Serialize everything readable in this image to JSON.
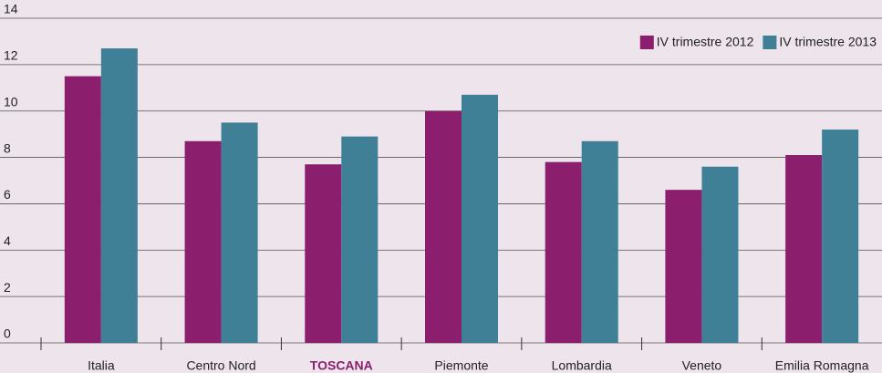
{
  "chart_data": {
    "type": "bar",
    "categories": [
      "Italia",
      "Centro Nord",
      "TOSCANA",
      "Piemonte",
      "Lombardia",
      "Veneto",
      "Emilia Romagna"
    ],
    "series": [
      {
        "name": "IV trimestre 2012",
        "color": "#8b1f6e",
        "values": [
          11.5,
          8.7,
          7.7,
          10.0,
          7.8,
          6.6,
          8.1
        ]
      },
      {
        "name": "IV trimestre 2013",
        "color": "#3f8097",
        "values": [
          12.7,
          9.5,
          8.9,
          10.7,
          8.7,
          7.6,
          9.2
        ]
      }
    ],
    "ylim": [
      0,
      14
    ],
    "yticks": [
      0,
      2,
      4,
      6,
      8,
      10,
      12,
      14
    ],
    "grid": true,
    "legend": "top-right",
    "highlight": 2
  }
}
